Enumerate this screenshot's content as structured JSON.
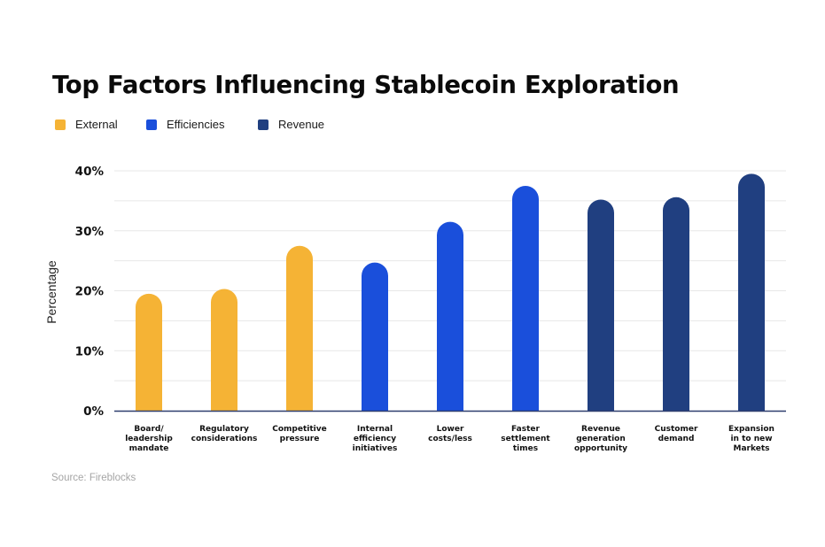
{
  "chart_data": {
    "type": "bar",
    "title": "Top Factors Influencing Stablecoin Exploration",
    "xlabel": "",
    "ylabel": "Percentage",
    "ylim": [
      0,
      40
    ],
    "yticks": [
      "0%",
      "10%",
      "20%",
      "30%",
      "40%"
    ],
    "grid": true,
    "legend_position": "top-left",
    "legend": [
      {
        "name": "External",
        "color": "#f5b335"
      },
      {
        "name": "Efficiencies",
        "color": "#1a4fdb"
      },
      {
        "name": "Revenue",
        "color": "#203f80"
      }
    ],
    "categories": [
      "Board/ leadership mandate",
      "Regulatory considerations",
      "Competitive pressure",
      "Internal efficiency initiatives",
      "Lower costs/less",
      "Faster settlement times",
      "Revenue generation opportunity",
      "Customer demand",
      "Expansion in to new Markets"
    ],
    "category_lines": [
      [
        "Board/",
        "leadership",
        "mandate"
      ],
      [
        "Regulatory",
        "considerations"
      ],
      [
        "Competitive",
        "pressure"
      ],
      [
        "Internal",
        "efficiency",
        "initiatives"
      ],
      [
        "Lower",
        "costs/less"
      ],
      [
        "Faster",
        "settlement",
        "times"
      ],
      [
        "Revenue",
        "generation",
        "opportunity"
      ],
      [
        "Customer",
        "demand"
      ],
      [
        "Expansion",
        "in to new",
        "Markets"
      ]
    ],
    "values": [
      19.5,
      20.3,
      27.5,
      24.7,
      31.5,
      37.5,
      35.2,
      35.6,
      39.5
    ],
    "groups": [
      "External",
      "External",
      "External",
      "Efficiencies",
      "Efficiencies",
      "Efficiencies",
      "Revenue",
      "Revenue",
      "Revenue"
    ]
  },
  "source": "Source: Fireblocks"
}
